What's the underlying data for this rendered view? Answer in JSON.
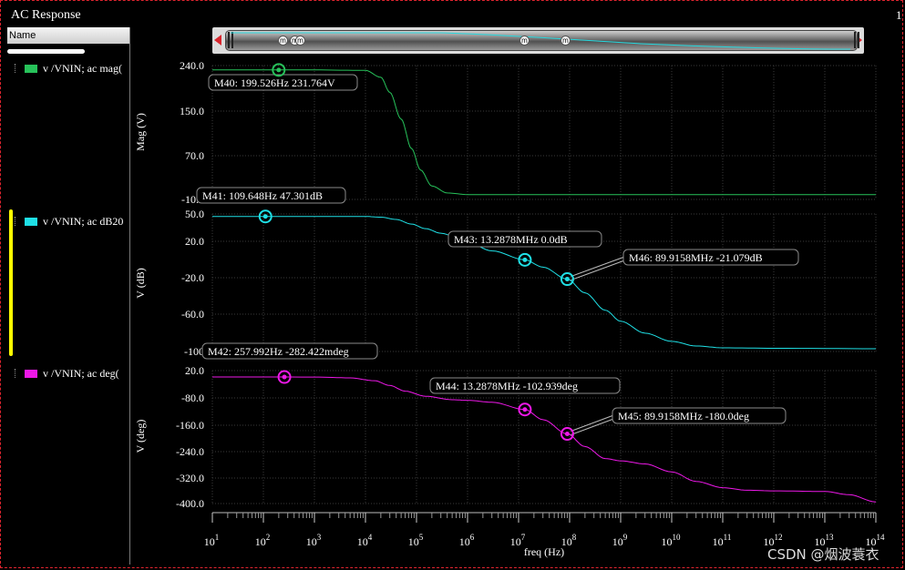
{
  "window": {
    "title": "AC Response",
    "corner_text": "1"
  },
  "sidebar": {
    "header": "Name",
    "traces": [
      {
        "label": "v /VNIN; ac mag(",
        "color": "#27c25a"
      },
      {
        "label": "v /VNIN; ac dB20",
        "color": "#1fe0e6"
      },
      {
        "label": "v /VNIN; ac deg(",
        "color": "#ee18e8"
      }
    ]
  },
  "scrollbar": {
    "marker_glyph": "m"
  },
  "chart_data": [
    {
      "type": "line",
      "ylabel": "Mag (V)",
      "yticks": [
        "240.0",
        "150.0",
        "70.0",
        "-10.0"
      ],
      "ylim": [
        -10,
        240
      ],
      "xscale": "log",
      "series": [
        {
          "color": "#27c25a",
          "x": [
            10,
            1000,
            10000,
            20000,
            30000,
            50000,
            80000,
            120000,
            200000,
            400000,
            1000000,
            10000000.0,
            100000000000000.0
          ],
          "y": [
            231.8,
            231.8,
            231,
            218,
            190,
            140,
            85,
            45,
            15,
            2,
            -1,
            -1,
            -1
          ]
        }
      ],
      "markers": [
        {
          "name": "M40",
          "x": 199.526,
          "y": 231.764,
          "label": "M40: 199.526Hz 231.764V"
        }
      ]
    },
    {
      "type": "line",
      "ylabel": "V (dB)",
      "yticks": [
        "50.0",
        "20.0",
        "-20.0",
        "-60.0",
        "-100"
      ],
      "ylim": [
        -100,
        50
      ],
      "xscale": "log",
      "series": [
        {
          "color": "#1fe0e6",
          "x": [
            10,
            10000,
            20000,
            40000,
            80000,
            150000,
            300000,
            1000000,
            3000000,
            13287800.0,
            30000000.0,
            89915800.0,
            200000000.0,
            500000000.0,
            1000000000.0,
            3000000000.0,
            10000000000.0,
            30000000000.0,
            100000000000.0,
            1000000000000.0,
            100000000000000.0
          ],
          "y": [
            47.3,
            47.3,
            46.5,
            44,
            39,
            34,
            29,
            19,
            9.8,
            0,
            -8,
            -21.079,
            -36,
            -55,
            -67,
            -80,
            -89,
            -94,
            -96,
            -96.5,
            -97
          ]
        }
      ],
      "markers": [
        {
          "name": "M41",
          "x": 109.648,
          "y": 47.301,
          "label": "M41: 109.648Hz 47.301dB"
        },
        {
          "name": "M43",
          "x": 13287800,
          "y": 0.0,
          "label": "M43: 13.2878MHz 0.0dB"
        },
        {
          "name": "M46",
          "x": 89915800,
          "y": -21.079,
          "label": "M46: 89.9158MHz -21.079dB"
        }
      ]
    },
    {
      "type": "line",
      "ylabel": "V (deg)",
      "yticks": [
        "20.0",
        "-80.0",
        "-160.0",
        "-240.0",
        "-320.0",
        "-400.0"
      ],
      "ylim": [
        -400,
        20
      ],
      "xscale": "log",
      "series": [
        {
          "color": "#ee18e8",
          "x": [
            10,
            1000,
            5000,
            15000,
            30000,
            60000,
            150000,
            500000,
            1000000,
            3000000,
            13287800.0,
            30000000.0,
            89915800.0,
            200000000.0,
            500000000.0,
            1000000000.0,
            3000000000.0,
            10000000000.0,
            30000000000.0,
            100000000000.0,
            300000000000.0,
            1000000000000.0,
            10000000000000.0,
            30000000000000.0,
            100000000000000.0
          ],
          "y": [
            0,
            -0.3,
            -3,
            -12,
            -27,
            -45,
            -61,
            -72,
            -74,
            -80,
            -102.939,
            -135,
            -180,
            -220,
            -258,
            -265,
            -275,
            -300,
            -330,
            -350,
            -358,
            -360,
            -362,
            -372,
            -395
          ]
        }
      ],
      "markers": [
        {
          "name": "M42",
          "x": 257.992,
          "y": -0.282422,
          "label": "M42: 257.992Hz -282.422mdeg"
        },
        {
          "name": "M44",
          "x": 13287800,
          "y": -102.939,
          "label": "M44: 13.2878MHz -102.939deg"
        },
        {
          "name": "M45",
          "x": 89915800,
          "y": -180.0,
          "label": "M45: 89.9158MHz -180.0deg"
        }
      ]
    }
  ],
  "x_axis": {
    "label": "freq (Hz)",
    "tick_mantissa": "10",
    "tick_exponents": [
      "1",
      "2",
      "3",
      "4",
      "5",
      "6",
      "7",
      "8",
      "9",
      "10",
      "11",
      "12",
      "13",
      "14"
    ],
    "range_log10": [
      1,
      14
    ]
  },
  "watermark": "CSDN @烟波蓑衣"
}
